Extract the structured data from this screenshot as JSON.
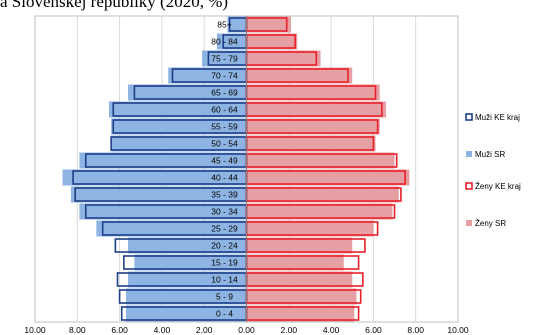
{
  "title": "a Slovenskej republiky (2020, %)",
  "chart_data": {
    "type": "bar",
    "orientation": "horizontal-pyramid",
    "title": "a Slovenskej republiky (2020, %)",
    "categories": [
      "85+",
      "80 - 84",
      "75 - 79",
      "70 - 74",
      "65 - 69",
      "60 - 64",
      "55 - 59",
      "50 - 54",
      "45 - 49",
      "40 - 44",
      "35 - 39",
      "30 - 34",
      "25 - 29",
      "20 - 24",
      "15 - 19",
      "10 - 14",
      "5 - 9",
      "0 - 4"
    ],
    "xlim": [
      -10,
      10
    ],
    "x_ticks": [
      "10.00",
      "8.00",
      "6.00",
      "4.00",
      "2.00",
      "0.00",
      "2.00",
      "4.00",
      "6.00",
      "8.00",
      "10.00"
    ],
    "grid": "vertical",
    "legend_position": "right",
    "series": [
      {
        "name": "Muži SR",
        "side": "left",
        "style": "filled",
        "color": "#8eb4e3",
        "values": [
          0.9,
          1.4,
          2.1,
          3.7,
          5.6,
          6.5,
          6.4,
          6.4,
          7.9,
          8.7,
          8.3,
          7.9,
          7.1,
          5.6,
          5.3,
          5.6,
          5.7,
          5.7
        ]
      },
      {
        "name": "Ženy SR",
        "side": "right",
        "style": "filled",
        "color": "#e6a0a4",
        "values": [
          2.1,
          2.4,
          3.5,
          5.0,
          6.3,
          6.6,
          6.3,
          6.1,
          7.0,
          7.7,
          7.2,
          6.9,
          6.0,
          5.0,
          4.6,
          5.0,
          5.2,
          5.1
        ]
      },
      {
        "name": "Muži KE kraj",
        "side": "left",
        "style": "outline",
        "color": "#1f3f87",
        "values": [
          0.8,
          1.1,
          1.8,
          3.5,
          5.3,
          6.3,
          6.3,
          6.4,
          7.6,
          8.2,
          8.1,
          7.6,
          6.8,
          6.2,
          5.8,
          6.1,
          6.0,
          5.9
        ]
      },
      {
        "name": "Ženy KE kraj",
        "side": "right",
        "style": "outline",
        "color": "#e8202a",
        "values": [
          1.9,
          2.3,
          3.3,
          4.8,
          6.1,
          6.4,
          6.2,
          6.0,
          7.1,
          7.5,
          7.3,
          7.0,
          6.2,
          5.6,
          5.3,
          5.5,
          5.4,
          5.3
        ]
      }
    ],
    "legend": [
      "Muži KE kraj",
      "Muži SR",
      "Ženy KE kraj",
      "Ženy SR"
    ]
  }
}
